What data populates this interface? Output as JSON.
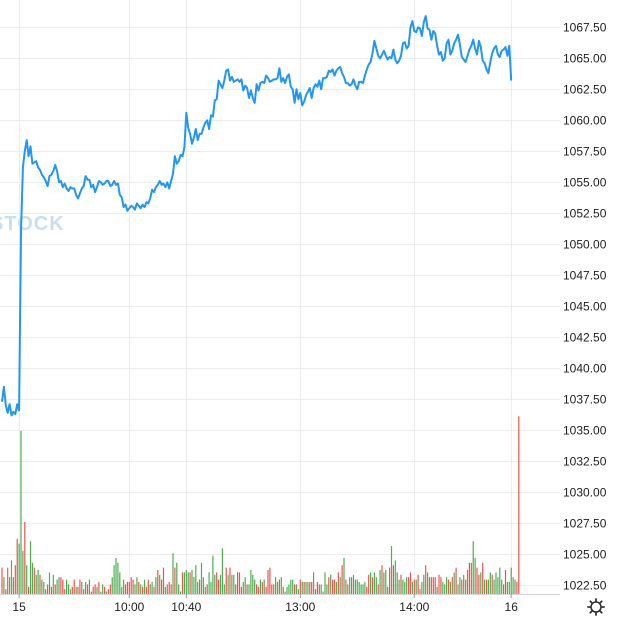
{
  "watermark": {
    "text": "STOCK",
    "color": "#c8dff0"
  },
  "settings_icon": "gear-icon",
  "chart_data": {
    "type": "line",
    "title": "",
    "xlabel": "",
    "ylabel": "",
    "grid": true,
    "ylim": [
      1021.3,
      1069.7
    ],
    "y_ticks": [
      "1022.50",
      "1025.00",
      "1027.50",
      "1030.00",
      "1032.50",
      "1035.00",
      "1037.50",
      "1040.00",
      "1042.50",
      "1045.00",
      "1047.50",
      "1050.00",
      "1052.50",
      "1055.00",
      "1057.50",
      "1060.00",
      "1062.50",
      "1065.00",
      "1067.50"
    ],
    "x_ticks": [
      "15",
      "10:00",
      "10:40",
      "13:00",
      "14:00",
      "16"
    ],
    "x_tick_index": [
      9,
      67,
      97,
      157,
      217,
      268
    ],
    "colors": {
      "price_line": "#2196f3",
      "volume_up": "#4caf50",
      "volume_down": "#ef5350"
    },
    "price": {
      "name": "",
      "values": [
        1037.3,
        1038.5,
        1037.0,
        1036.4,
        1037.1,
        1036.2,
        1036.5,
        1036.3,
        1037.1,
        1036.6,
        1051.0,
        1056.2,
        1057.5,
        1058.4,
        1057.1,
        1057.9,
        1056.5,
        1056.6,
        1056.7,
        1056.2,
        1056.0,
        1055.6,
        1055.4,
        1055.1,
        1054.7,
        1055.5,
        1055.6,
        1055.9,
        1056.4,
        1055.9,
        1055.0,
        1055.1,
        1054.6,
        1054.9,
        1054.5,
        1054.3,
        1054.6,
        1054.5,
        1054.5,
        1054.0,
        1053.7,
        1054.1,
        1054.5,
        1054.7,
        1055.5,
        1055.2,
        1055.2,
        1054.6,
        1054.8,
        1054.2,
        1054.6,
        1055.1,
        1055.0,
        1054.8,
        1054.9,
        1055.1,
        1055.1,
        1054.7,
        1054.8,
        1055.1,
        1054.8,
        1054.9,
        1054.0,
        1053.8,
        1053.0,
        1053.2,
        1052.7,
        1052.9,
        1053.1,
        1053.0,
        1052.8,
        1053.3,
        1053.1,
        1052.9,
        1053.2,
        1053.0,
        1053.4,
        1053.3,
        1053.7,
        1054.4,
        1054.2,
        1054.6,
        1054.8,
        1055.1,
        1054.8,
        1054.9,
        1054.6,
        1055.0,
        1054.5,
        1055.1,
        1055.7,
        1057.1,
        1056.5,
        1056.7,
        1057.2,
        1057.1,
        1057.8,
        1060.6,
        1059.4,
        1058.9,
        1058.1,
        1058.6,
        1059.3,
        1058.4,
        1058.9,
        1058.9,
        1059.4,
        1059.8,
        1060.0,
        1059.3,
        1060.4,
        1060.3,
        1061.6,
        1061.7,
        1063.2,
        1062.9,
        1062.6,
        1063.2,
        1064.0,
        1064.1,
        1063.2,
        1063.5,
        1063.1,
        1063.2,
        1063.3,
        1063.1,
        1063.3,
        1062.4,
        1062.8,
        1062.6,
        1061.8,
        1062.4,
        1061.8,
        1061.4,
        1062.9,
        1062.4,
        1063.0,
        1063.1,
        1063.0,
        1063.6,
        1063.4,
        1063.1,
        1063.2,
        1063.3,
        1063.3,
        1063.4,
        1064.2,
        1063.1,
        1063.4,
        1063.0,
        1063.5,
        1063.7,
        1062.7,
        1062.5,
        1061.4,
        1062.5,
        1061.7,
        1062.2,
        1061.2,
        1061.5,
        1062.0,
        1062.3,
        1062.6,
        1061.8,
        1062.6,
        1062.9,
        1062.7,
        1063.2,
        1062.5,
        1063.4,
        1063.4,
        1063.5,
        1064.0,
        1063.9,
        1064.1,
        1063.6,
        1064.0,
        1064.2,
        1064.3,
        1063.8,
        1063.5,
        1063.0,
        1063.0,
        1062.8,
        1062.9,
        1063.3,
        1062.8,
        1062.5,
        1063.1,
        1063.1,
        1063.0,
        1063.6,
        1064.1,
        1064.5,
        1064.7,
        1065.4,
        1066.4,
        1065.8,
        1065.2,
        1065.0,
        1065.3,
        1065.6,
        1065.2,
        1064.9,
        1065.1,
        1065.0,
        1065.7,
        1064.9,
        1064.6,
        1064.8,
        1065.2,
        1066.2,
        1066.3,
        1065.8,
        1066.0,
        1067.5,
        1068.0,
        1067.2,
        1067.1,
        1067.5,
        1067.4,
        1066.8,
        1067.9,
        1068.4,
        1067.4,
        1067.3,
        1066.5,
        1067.2,
        1067.0,
        1066.0,
        1065.3,
        1065.5,
        1064.8,
        1065.0,
        1066.2,
        1066.5,
        1065.3,
        1065.6,
        1066.2,
        1066.5,
        1066.9,
        1066.1,
        1065.1,
        1064.9,
        1064.7,
        1065.2,
        1065.7,
        1066.0,
        1066.5,
        1065.8,
        1065.3,
        1066.4,
        1065.9,
        1064.8,
        1064.6,
        1064.1,
        1063.8,
        1064.7,
        1065.4,
        1065.8,
        1066.0,
        1065.3,
        1065.1,
        1065.6,
        1065.7,
        1065.9,
        1065.2,
        1066.0,
        1063.2
      ]
    },
    "volume": {
      "relative_heights": [
        0.11,
        0.07,
        0.02,
        0.11,
        0.07,
        0.14,
        0.07,
        0.12,
        0.23,
        0.21,
        0.68,
        0.18,
        0.3,
        0.12,
        0.03,
        0.22,
        0.13,
        0.11,
        0.08,
        0.1,
        0.08,
        0.06,
        0.05,
        0.02,
        0.04,
        0.09,
        0.03,
        0.08,
        0.04,
        0.06,
        0.07,
        0.07,
        0.06,
        0.02,
        0.06,
        0.04,
        0.02,
        0.03,
        0.06,
        0.03,
        0.03,
        0.06,
        0.05,
        0.02,
        0.05,
        0.04,
        0.06,
        0.01,
        0.03,
        0.04,
        0.03,
        0.05,
        0.01,
        0.04,
        0.03,
        0.01,
        0.02,
        0.04,
        0.07,
        0.12,
        0.15,
        0.13,
        0.09,
        0.03,
        0.06,
        0.04,
        0.05,
        0.05,
        0.07,
        0.06,
        0.04,
        0.07,
        0.05,
        0.04,
        0.03,
        0.06,
        0.03,
        0.06,
        0.04,
        0.05,
        0.03,
        0.07,
        0.1,
        0.08,
        0.06,
        0.11,
        0.03,
        0.04,
        0.05,
        0.04,
        0.17,
        0.11,
        0.13,
        0.04,
        0.01,
        0.09,
        0.09,
        0.1,
        0.09,
        0.09,
        0.1,
        0.07,
        0.12,
        0.05,
        0.06,
        0.13,
        0.07,
        0.03,
        0.04,
        0.09,
        0.05,
        0.16,
        0.08,
        0.09,
        0.06,
        0.08,
        0.19,
        0.04,
        0.11,
        0.08,
        0.11,
        0.08,
        0.08,
        0.04,
        0.09,
        0.09,
        0.03,
        0.05,
        0.07,
        0.04,
        0.04,
        0.1,
        0.08,
        0.06,
        0.04,
        0.03,
        0.06,
        0.05,
        0.06,
        0.03,
        0.1,
        0.11,
        0.04,
        0.04,
        0.07,
        0.05,
        0.06,
        0.07,
        0.03,
        0.01,
        0.03,
        0.04,
        0.06,
        0.06,
        0.04,
        0.04,
        0.02,
        0.06,
        0.05,
        0.05,
        0.05,
        0.05,
        0.05,
        0.05,
        0.09,
        0.02,
        0.05,
        0.04,
        0.04,
        0.01,
        0.09,
        0.04,
        0.07,
        0.08,
        0.06,
        0.06,
        0.05,
        0.09,
        0.07,
        0.12,
        0.15,
        0.06,
        0.04,
        0.07,
        0.07,
        0.08,
        0.06,
        0.06,
        0.05,
        0.04,
        0.04,
        0.05,
        0.03,
        0.08,
        0.09,
        0.07,
        0.09,
        0.07,
        0.04,
        0.1,
        0.12,
        0.09,
        0.1,
        0.03,
        0.11,
        0.2,
        0.12,
        0.14,
        0.09,
        0.06,
        0.08,
        0.06,
        0.05,
        0.07,
        0.07,
        0.09,
        0.05,
        0.06,
        0.06,
        0.08,
        0.02,
        0.05,
        0.08,
        0.12,
        0.09,
        0.07,
        0.07,
        0.07,
        0.07,
        0.03,
        0.08,
        0.07,
        0.05,
        0.04,
        0.07,
        0.06,
        0.05,
        0.07,
        0.09,
        0.11,
        0.04,
        0.07,
        0.06,
        0.08,
        0.06,
        0.1,
        0.13,
        0.13,
        0.22,
        0.15,
        0.11,
        0.08,
        0.09,
        0.13,
        0.06,
        0.06,
        0.06,
        0.09,
        0.08,
        0.06,
        0.09,
        0.07,
        0.11,
        0.06,
        0.04,
        0.1,
        0.05,
        0.05,
        0.11,
        0.07,
        0.06,
        0.05,
        0.74
      ],
      "direction": [
        "d",
        "u",
        "d",
        "d",
        "u",
        "u",
        "u",
        "d",
        "d",
        "u",
        "u",
        "u",
        "d",
        "u",
        "d",
        "u",
        "u",
        "d",
        "u",
        "u",
        "d",
        "u",
        "u",
        "d",
        "d",
        "u",
        "d",
        "u",
        "d",
        "u",
        "u",
        "d",
        "d",
        "d",
        "u",
        "u",
        "u",
        "d",
        "d",
        "u",
        "d",
        "d",
        "u",
        "d",
        "u",
        "d",
        "u",
        "d",
        "d",
        "d",
        "u",
        "d",
        "u",
        "u",
        "d",
        "u",
        "d",
        "d",
        "u",
        "u",
        "u",
        "u",
        "u",
        "u",
        "u",
        "d",
        "d",
        "d",
        "d",
        "d",
        "u",
        "u",
        "d",
        "u",
        "d",
        "u",
        "d",
        "d",
        "u",
        "u",
        "d",
        "u",
        "d",
        "u",
        "d",
        "d",
        "u",
        "u",
        "d",
        "d",
        "u",
        "d",
        "u",
        "u",
        "u",
        "d",
        "u",
        "u",
        "u",
        "d",
        "u",
        "u",
        "u",
        "u",
        "d",
        "u",
        "u",
        "u",
        "d",
        "u",
        "u",
        "u",
        "u",
        "d",
        "d",
        "u",
        "u",
        "u",
        "d",
        "u",
        "d",
        "u",
        "u",
        "d",
        "d",
        "d",
        "d",
        "u",
        "u",
        "d",
        "u",
        "u",
        "u",
        "u",
        "d",
        "d",
        "u",
        "d",
        "u",
        "d",
        "d",
        "d",
        "d",
        "u",
        "u",
        "u",
        "d",
        "u",
        "d",
        "u",
        "u",
        "u",
        "u",
        "u",
        "d",
        "u",
        "u",
        "d",
        "u",
        "d",
        "u",
        "u",
        "d",
        "d",
        "u",
        "d",
        "d",
        "d",
        "u",
        "u",
        "u",
        "u",
        "d",
        "u",
        "d",
        "d",
        "u",
        "d",
        "u",
        "d",
        "u",
        "d",
        "u",
        "u",
        "d",
        "u",
        "u",
        "u",
        "u",
        "u",
        "u",
        "u",
        "d",
        "d",
        "u",
        "d",
        "u",
        "u",
        "d",
        "u",
        "d",
        "u",
        "u",
        "d",
        "d",
        "u",
        "d",
        "u",
        "u",
        "u",
        "d",
        "u",
        "u",
        "u",
        "d",
        "d",
        "u",
        "d",
        "u",
        "d",
        "d",
        "u",
        "u",
        "d",
        "u",
        "d",
        "u",
        "d",
        "d",
        "u",
        "d",
        "d",
        "u",
        "u",
        "u",
        "d",
        "u",
        "d",
        "u",
        "d",
        "u",
        "u",
        "d",
        "u",
        "u",
        "d",
        "d",
        "d",
        "u",
        "u",
        "d",
        "d",
        "u",
        "d",
        "u",
        "d",
        "u",
        "u",
        "d",
        "u",
        "u",
        "u",
        "u",
        "u",
        "d",
        "d",
        "u",
        "u",
        "u",
        "u",
        "u"
      ]
    }
  }
}
